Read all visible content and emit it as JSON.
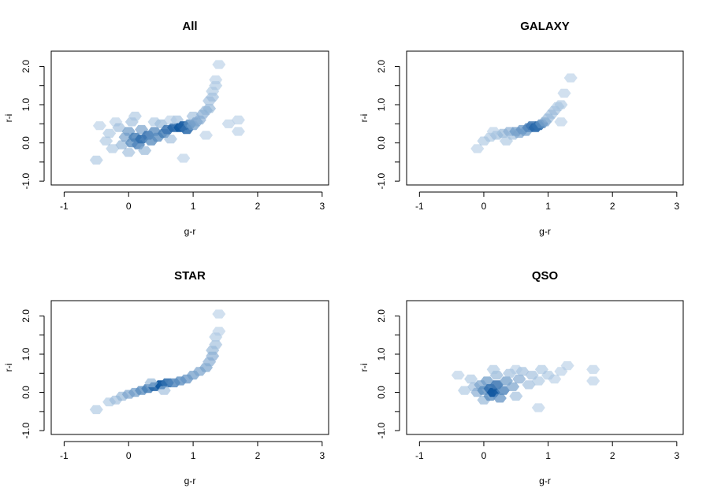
{
  "figure": {
    "colors": {
      "background": "#ffffff",
      "axis": "#000000",
      "low_density": "#d6e6f4",
      "high_density": "#08519c"
    }
  },
  "chart_data": [
    {
      "type": "heatmap",
      "kind": "hexbin-density",
      "title": "All",
      "xlabel": "g-r",
      "ylabel": "r-i",
      "xlim": [
        -1.2,
        3.1
      ],
      "ylim": [
        -1.1,
        2.4
      ],
      "xticks": [
        -1,
        0,
        1,
        2,
        3
      ],
      "xtick_labels": [
        "-1",
        "0",
        "1",
        "2",
        "3"
      ],
      "yticks": [
        -1,
        -0.5,
        0,
        0.5,
        1,
        1.5,
        2
      ],
      "ytick_labels": [
        "-1.0",
        "",
        "0.0",
        "",
        "1.0",
        "",
        "2.0"
      ],
      "points": [
        [
          -0.5,
          -0.45,
          0.25
        ],
        [
          -0.45,
          0.45,
          0.2
        ],
        [
          -0.35,
          0.05,
          0.25
        ],
        [
          -0.3,
          0.25,
          0.25
        ],
        [
          -0.25,
          -0.15,
          0.25
        ],
        [
          -0.2,
          0.55,
          0.2
        ],
        [
          -0.15,
          0.4,
          0.3
        ],
        [
          -0.1,
          -0.05,
          0.35
        ],
        [
          -0.05,
          0.15,
          0.45
        ],
        [
          0.0,
          0.3,
          0.5
        ],
        [
          0.0,
          -0.25,
          0.3
        ],
        [
          0.05,
          0.0,
          0.6
        ],
        [
          0.05,
          0.55,
          0.3
        ],
        [
          0.1,
          0.15,
          0.7
        ],
        [
          0.1,
          0.7,
          0.25
        ],
        [
          0.15,
          -0.05,
          0.65
        ],
        [
          0.2,
          0.1,
          0.8
        ],
        [
          0.2,
          0.35,
          0.45
        ],
        [
          0.25,
          -0.2,
          0.35
        ],
        [
          0.3,
          0.2,
          0.75
        ],
        [
          0.35,
          0.05,
          0.6
        ],
        [
          0.4,
          0.3,
          0.6
        ],
        [
          0.45,
          0.15,
          0.6
        ],
        [
          0.5,
          0.5,
          0.35
        ],
        [
          0.55,
          0.25,
          0.7
        ],
        [
          0.6,
          0.35,
          0.75
        ],
        [
          0.65,
          0.1,
          0.3
        ],
        [
          0.7,
          0.4,
          0.85
        ],
        [
          0.75,
          0.6,
          0.3
        ],
        [
          0.8,
          0.4,
          0.95
        ],
        [
          0.85,
          0.45,
          0.9
        ],
        [
          0.9,
          0.35,
          0.8
        ],
        [
          0.95,
          0.5,
          0.6
        ],
        [
          1.0,
          0.45,
          0.5
        ],
        [
          1.0,
          0.7,
          0.3
        ],
        [
          1.05,
          0.55,
          0.45
        ],
        [
          1.1,
          0.6,
          0.4
        ],
        [
          1.15,
          0.75,
          0.4
        ],
        [
          1.2,
          0.85,
          0.35
        ],
        [
          1.25,
          0.9,
          0.35
        ],
        [
          1.25,
          1.1,
          0.3
        ],
        [
          1.3,
          1.2,
          0.3
        ],
        [
          1.3,
          1.35,
          0.25
        ],
        [
          1.35,
          1.5,
          0.25
        ],
        [
          1.35,
          1.65,
          0.2
        ],
        [
          1.4,
          2.05,
          0.2
        ],
        [
          0.85,
          -0.4,
          0.2
        ],
        [
          1.2,
          0.2,
          0.2
        ],
        [
          0.65,
          0.6,
          0.2
        ],
        [
          1.7,
          0.6,
          0.2
        ],
        [
          1.7,
          0.3,
          0.2
        ],
        [
          1.55,
          0.5,
          0.2
        ],
        [
          0.4,
          0.55,
          0.25
        ]
      ]
    },
    {
      "type": "heatmap",
      "kind": "hexbin-density",
      "title": "GALAXY",
      "xlabel": "g-r",
      "ylabel": "r-i",
      "xlim": [
        -1.2,
        3.1
      ],
      "ylim": [
        -1.1,
        2.4
      ],
      "xticks": [
        -1,
        0,
        1,
        2,
        3
      ],
      "xtick_labels": [
        "-1",
        "0",
        "1",
        "2",
        "3"
      ],
      "yticks": [
        -1,
        -0.5,
        0,
        0.5,
        1,
        1.5,
        2
      ],
      "ytick_labels": [
        "-1.0",
        "",
        "0.0",
        "",
        "1.0",
        "",
        "2.0"
      ],
      "points": [
        [
          -0.1,
          -0.15,
          0.2
        ],
        [
          0.0,
          0.05,
          0.25
        ],
        [
          0.1,
          0.15,
          0.25
        ],
        [
          0.2,
          0.2,
          0.3
        ],
        [
          0.3,
          0.25,
          0.35
        ],
        [
          0.4,
          0.3,
          0.4
        ],
        [
          0.45,
          0.2,
          0.3
        ],
        [
          0.5,
          0.3,
          0.5
        ],
        [
          0.55,
          0.25,
          0.45
        ],
        [
          0.6,
          0.35,
          0.55
        ],
        [
          0.65,
          0.3,
          0.5
        ],
        [
          0.7,
          0.4,
          0.65
        ],
        [
          0.75,
          0.45,
          0.75
        ],
        [
          0.8,
          0.4,
          0.85
        ],
        [
          0.85,
          0.45,
          0.8
        ],
        [
          0.9,
          0.5,
          0.6
        ],
        [
          0.95,
          0.55,
          0.45
        ],
        [
          1.0,
          0.65,
          0.35
        ],
        [
          1.05,
          0.75,
          0.3
        ],
        [
          1.1,
          0.85,
          0.3
        ],
        [
          1.15,
          0.95,
          0.25
        ],
        [
          1.2,
          1.0,
          0.25
        ],
        [
          1.25,
          1.3,
          0.2
        ],
        [
          1.35,
          1.7,
          0.2
        ],
        [
          0.35,
          0.05,
          0.25
        ],
        [
          0.15,
          0.3,
          0.2
        ],
        [
          1.2,
          0.55,
          0.2
        ]
      ]
    },
    {
      "type": "heatmap",
      "kind": "hexbin-density",
      "title": "STAR",
      "xlabel": "g-r",
      "ylabel": "r-i",
      "xlim": [
        -1.2,
        3.1
      ],
      "ylim": [
        -1.1,
        2.4
      ],
      "xticks": [
        -1,
        0,
        1,
        2,
        3
      ],
      "xtick_labels": [
        "-1",
        "0",
        "1",
        "2",
        "3"
      ],
      "yticks": [
        -1,
        -0.5,
        0,
        0.5,
        1,
        1.5,
        2
      ],
      "ytick_labels": [
        "-1.0",
        "",
        "0.0",
        "",
        "1.0",
        "",
        "2.0"
      ],
      "points": [
        [
          -0.5,
          -0.45,
          0.25
        ],
        [
          -0.3,
          -0.25,
          0.25
        ],
        [
          -0.2,
          -0.2,
          0.3
        ],
        [
          -0.1,
          -0.1,
          0.35
        ],
        [
          0.0,
          -0.05,
          0.45
        ],
        [
          0.1,
          0.0,
          0.5
        ],
        [
          0.2,
          0.05,
          0.6
        ],
        [
          0.3,
          0.1,
          0.7
        ],
        [
          0.4,
          0.15,
          0.85
        ],
        [
          0.5,
          0.2,
          0.95
        ],
        [
          0.6,
          0.25,
          0.8
        ],
        [
          0.7,
          0.25,
          0.65
        ],
        [
          0.8,
          0.3,
          0.6
        ],
        [
          0.9,
          0.35,
          0.55
        ],
        [
          1.0,
          0.45,
          0.5
        ],
        [
          1.1,
          0.55,
          0.45
        ],
        [
          1.2,
          0.65,
          0.45
        ],
        [
          1.25,
          0.8,
          0.4
        ],
        [
          1.3,
          0.95,
          0.4
        ],
        [
          1.3,
          1.1,
          0.35
        ],
        [
          1.35,
          1.25,
          0.3
        ],
        [
          1.35,
          1.45,
          0.25
        ],
        [
          1.4,
          1.6,
          0.2
        ],
        [
          1.4,
          2.05,
          0.2
        ],
        [
          0.35,
          0.25,
          0.35
        ],
        [
          0.55,
          0.05,
          0.3
        ]
      ]
    },
    {
      "type": "heatmap",
      "kind": "hexbin-density",
      "title": "QSO",
      "xlabel": "g-r",
      "ylabel": "r-i",
      "xlim": [
        -1.2,
        3.1
      ],
      "ylim": [
        -1.1,
        2.4
      ],
      "xticks": [
        -1,
        0,
        1,
        2,
        3
      ],
      "xtick_labels": [
        "-1",
        "0",
        "1",
        "2",
        "3"
      ],
      "yticks": [
        -1,
        -0.5,
        0,
        0.5,
        1,
        1.5,
        2
      ],
      "ytick_labels": [
        "-1.0",
        "",
        "0.0",
        "",
        "1.0",
        "",
        "2.0"
      ],
      "points": [
        [
          -0.4,
          0.45,
          0.2
        ],
        [
          -0.2,
          0.35,
          0.25
        ],
        [
          -0.15,
          0.15,
          0.3
        ],
        [
          -0.1,
          0.0,
          0.4
        ],
        [
          -0.05,
          0.2,
          0.45
        ],
        [
          0.0,
          0.05,
          0.6
        ],
        [
          0.0,
          -0.2,
          0.35
        ],
        [
          0.05,
          0.3,
          0.5
        ],
        [
          0.1,
          0.1,
          0.8
        ],
        [
          0.1,
          -0.1,
          0.6
        ],
        [
          0.15,
          0.0,
          0.95
        ],
        [
          0.2,
          0.2,
          0.75
        ],
        [
          0.2,
          0.45,
          0.35
        ],
        [
          0.25,
          -0.15,
          0.55
        ],
        [
          0.3,
          0.05,
          0.65
        ],
        [
          0.35,
          0.3,
          0.5
        ],
        [
          0.4,
          0.5,
          0.3
        ],
        [
          0.45,
          0.15,
          0.45
        ],
        [
          0.5,
          -0.1,
          0.3
        ],
        [
          0.55,
          0.35,
          0.4
        ],
        [
          0.6,
          0.55,
          0.3
        ],
        [
          0.7,
          0.2,
          0.3
        ],
        [
          0.75,
          0.45,
          0.3
        ],
        [
          0.85,
          0.3,
          0.25
        ],
        [
          0.9,
          0.6,
          0.25
        ],
        [
          1.0,
          0.45,
          0.25
        ],
        [
          1.1,
          0.35,
          0.2
        ],
        [
          1.2,
          0.55,
          0.2
        ],
        [
          1.3,
          0.7,
          0.2
        ],
        [
          1.7,
          0.6,
          0.2
        ],
        [
          1.7,
          0.3,
          0.2
        ],
        [
          0.85,
          -0.4,
          0.2
        ],
        [
          -0.3,
          0.05,
          0.25
        ],
        [
          0.15,
          0.6,
          0.25
        ],
        [
          0.5,
          0.6,
          0.2
        ]
      ]
    }
  ]
}
